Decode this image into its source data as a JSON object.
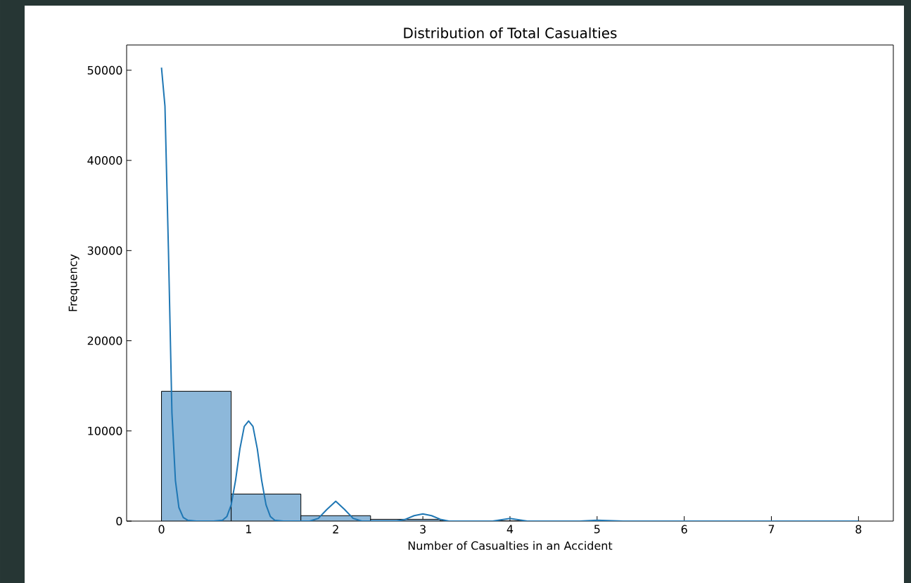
{
  "chart_data": {
    "type": "histogram",
    "title": "Distribution of Total Casualties",
    "xlabel": "Number of Casualties in an Accident",
    "ylabel": "Frequency",
    "bins": [
      0,
      0.8,
      1.6,
      2.4,
      3.2,
      4.0,
      4.8,
      5.6,
      6.4,
      7.2,
      8.0
    ],
    "values": [
      14400,
      3000,
      600,
      200,
      0,
      0,
      0,
      0,
      0,
      0
    ],
    "color": "#8db8da",
    "series": [
      {
        "type": "line",
        "color": "#1f77b4",
        "x": [
          0,
          0.04,
          0.08,
          0.12,
          0.16,
          0.2,
          0.25,
          0.3,
          0.4,
          0.6,
          0.7,
          0.75,
          0.8,
          0.85,
          0.9,
          0.95,
          1.0,
          1.05,
          1.1,
          1.15,
          1.2,
          1.25,
          1.3,
          1.4,
          1.7,
          1.8,
          1.9,
          2.0,
          2.1,
          2.2,
          2.3,
          2.7,
          2.8,
          2.9,
          3.0,
          3.1,
          3.2,
          3.3,
          3.8,
          4.0,
          4.2,
          4.4,
          4.8,
          5.0,
          5.3,
          8.0
        ],
        "values": [
          50300,
          46000,
          30000,
          12000,
          4500,
          1500,
          400,
          100,
          0,
          0,
          100,
          500,
          1800,
          4500,
          8000,
          10500,
          11100,
          10500,
          8000,
          4500,
          1800,
          500,
          100,
          0,
          0,
          300,
          1300,
          2200,
          1300,
          300,
          0,
          0,
          200,
          600,
          800,
          600,
          200,
          0,
          0,
          300,
          0,
          0,
          0,
          100,
          0,
          0
        ]
      }
    ],
    "xlim": [
      -0.4,
      8.4
    ],
    "ylim": [
      0,
      52800
    ],
    "xticks": [
      0,
      1,
      2,
      3,
      4,
      5,
      6,
      7,
      8
    ],
    "yticks": [
      0,
      10000,
      20000,
      30000,
      40000,
      50000
    ],
    "grid": false
  }
}
